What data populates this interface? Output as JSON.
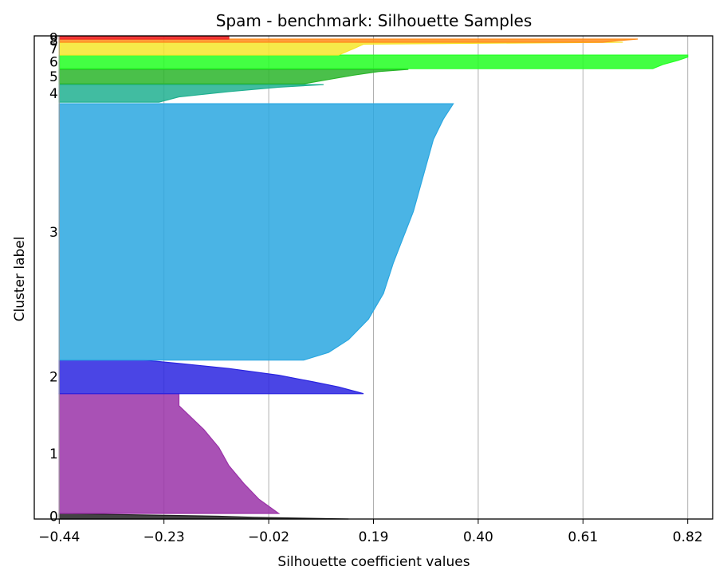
{
  "chart_data": {
    "type": "area",
    "title": "Spam - benchmark: Silhouette Samples",
    "xlabel": "Silhouette coefficient values",
    "ylabel": "Cluster label",
    "xlim": [
      -0.49,
      0.87
    ],
    "x_ticks": [
      -0.44,
      -0.23,
      -0.02,
      0.19,
      0.4,
      0.61,
      0.82
    ],
    "x_tick_labels": [
      "−0.44",
      "−0.23",
      "−0.02",
      "0.19",
      "0.40",
      "0.61",
      "0.82"
    ],
    "baseline": -0.44,
    "grid": "vertical",
    "clusters": [
      {
        "label": "0",
        "color": "#222222",
        "y_start": 0,
        "y_end": 7,
        "profile": [
          [
            0,
            0.14
          ],
          [
            0.15,
            0.05
          ],
          [
            0.3,
            -0.05
          ],
          [
            0.5,
            -0.12
          ],
          [
            0.7,
            -0.25
          ],
          [
            0.85,
            -0.35
          ],
          [
            1,
            -0.43
          ]
        ]
      },
      {
        "label": "1",
        "color": "#9a32a8",
        "y_start": 7,
        "y_end": 157,
        "profile": [
          [
            0,
            0.0
          ],
          [
            0.06,
            -0.02
          ],
          [
            0.12,
            -0.04
          ],
          [
            0.25,
            -0.07
          ],
          [
            0.4,
            -0.1
          ],
          [
            0.55,
            -0.12
          ],
          [
            0.7,
            -0.15
          ],
          [
            0.82,
            -0.18
          ],
          [
            0.9,
            -0.2
          ],
          [
            1,
            -0.2
          ]
        ]
      },
      {
        "label": "2",
        "color": "#2a24e0",
        "y_start": 157,
        "y_end": 199,
        "profile": [
          [
            0,
            0.17
          ],
          [
            0.08,
            0.15
          ],
          [
            0.2,
            0.12
          ],
          [
            0.35,
            0.07
          ],
          [
            0.55,
            0.0
          ],
          [
            0.75,
            -0.1
          ],
          [
            0.9,
            -0.2
          ],
          [
            1,
            -0.27
          ]
        ]
      },
      {
        "label": "3",
        "color": "#2aa7e0",
        "y_start": 199,
        "y_end": 520,
        "profile": [
          [
            0,
            0.05
          ],
          [
            0.03,
            0.1
          ],
          [
            0.08,
            0.14
          ],
          [
            0.16,
            0.18
          ],
          [
            0.26,
            0.21
          ],
          [
            0.38,
            0.23
          ],
          [
            0.48,
            0.25
          ],
          [
            0.58,
            0.27
          ],
          [
            0.72,
            0.29
          ],
          [
            0.86,
            0.31
          ],
          [
            0.94,
            0.33
          ],
          [
            1,
            0.35
          ]
        ]
      },
      {
        "label": "4",
        "color": "#20b090",
        "y_start": 522,
        "y_end": 544,
        "profile": [
          [
            0,
            -0.24
          ],
          [
            0.3,
            -0.2
          ],
          [
            0.6,
            -0.1
          ],
          [
            0.85,
            0.0
          ],
          [
            1,
            0.09
          ]
        ]
      },
      {
        "label": "5",
        "color": "#2ab52a",
        "y_start": 545,
        "y_end": 563,
        "profile": [
          [
            0,
            0.05
          ],
          [
            0.3,
            0.1
          ],
          [
            0.6,
            0.15
          ],
          [
            0.85,
            0.2
          ],
          [
            1,
            0.26
          ]
        ]
      },
      {
        "label": "6",
        "color": "#22ff22",
        "y_start": 564,
        "y_end": 581,
        "profile": [
          [
            0,
            0.75
          ],
          [
            0.3,
            0.77
          ],
          [
            0.6,
            0.8
          ],
          [
            0.85,
            0.82
          ],
          [
            1,
            0.82
          ]
        ]
      },
      {
        "label": "7",
        "color": "#f5e62a",
        "y_start": 581,
        "y_end": 597,
        "profile": [
          [
            0,
            0.12
          ],
          [
            0.5,
            0.15
          ],
          [
            0.85,
            0.17
          ],
          [
            1,
            0.69
          ]
        ]
      },
      {
        "label": "8",
        "color": "#ff8c1a",
        "y_start": 597,
        "y_end": 601,
        "profile": [
          [
            0,
            0.65
          ],
          [
            0.5,
            0.68
          ],
          [
            1,
            0.72
          ]
        ]
      },
      {
        "label": "9",
        "color": "#ee2222",
        "y_start": 601,
        "y_end": 604,
        "profile": [
          [
            0,
            -0.1
          ],
          [
            1,
            -0.1
          ]
        ]
      }
    ]
  }
}
